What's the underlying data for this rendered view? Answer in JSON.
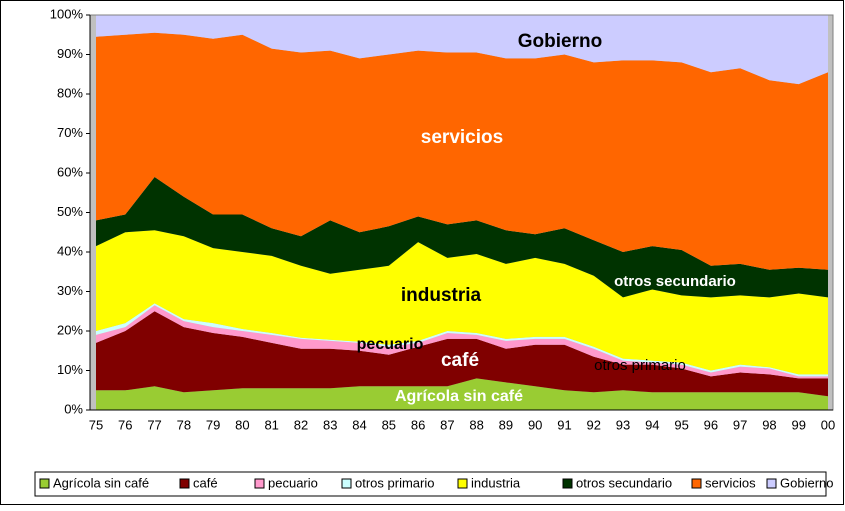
{
  "chart_data": {
    "type": "area",
    "stacked": true,
    "categories": [
      "75",
      "76",
      "77",
      "78",
      "79",
      "80",
      "81",
      "82",
      "83",
      "84",
      "85",
      "86",
      "87",
      "88",
      "89",
      "90",
      "91",
      "92",
      "93",
      "94",
      "95",
      "96",
      "97",
      "98",
      "99",
      "00"
    ],
    "series": [
      {
        "name": "Agrícola sin café",
        "color": "#99cc33",
        "values": [
          5,
          5,
          6,
          4.5,
          5,
          5.5,
          5.5,
          5.5,
          5.5,
          6,
          6,
          6,
          6,
          8,
          7,
          6,
          5,
          4.5,
          5,
          4.5,
          4.5,
          4.5,
          4.5,
          4.5,
          4.5,
          3.5
        ]
      },
      {
        "name": "café",
        "color": "#800000",
        "values": [
          12,
          15,
          19,
          16.5,
          14.5,
          13,
          11.5,
          10,
          10,
          9,
          8,
          10,
          12,
          10,
          8.5,
          10.5,
          11.5,
          9,
          6.5,
          7,
          6,
          4,
          5,
          4.5,
          3.5,
          4.5
        ]
      },
      {
        "name": "pecuario",
        "color": "#ff99cc",
        "values": [
          2,
          1,
          1.5,
          1.5,
          1.5,
          1.5,
          2,
          2.5,
          2,
          2,
          2,
          1,
          1.5,
          1,
          2,
          1.5,
          1.5,
          2,
          1,
          0.5,
          1,
          1,
          1.5,
          1.5,
          0.5,
          0.5
        ]
      },
      {
        "name": "otros primario",
        "color": "#ccffff",
        "values": [
          1,
          1,
          0.5,
          0.5,
          1,
          0.5,
          0.5,
          0.3,
          0.3,
          0.3,
          0.5,
          0.5,
          0.5,
          0.5,
          0.5,
          0.5,
          0.5,
          0.5,
          0.5,
          0.5,
          0.5,
          0.5,
          0.5,
          0.3,
          0.5,
          0.5
        ]
      },
      {
        "name": "industria",
        "color": "#ffff00",
        "values": [
          21.5,
          23,
          18.5,
          21,
          19,
          19.5,
          19.5,
          18.2,
          16.7,
          18.2,
          20,
          25,
          18.5,
          20,
          19,
          20,
          18.5,
          18,
          15.5,
          18,
          17,
          18.5,
          17.5,
          17.7,
          20.5,
          19.5
        ]
      },
      {
        "name": "otros secundario",
        "color": "#003300",
        "values": [
          6.5,
          4.5,
          13.5,
          10,
          8.5,
          9.5,
          7,
          7.5,
          13.5,
          9.5,
          10,
          6.5,
          8.5,
          8.5,
          8.5,
          6,
          9,
          9,
          11.5,
          11,
          11.5,
          8,
          8,
          7,
          6.5,
          7
        ]
      },
      {
        "name": "servicios",
        "color": "#ff6600",
        "values": [
          46.5,
          45.5,
          36.5,
          41,
          44.5,
          45.5,
          45.5,
          46.5,
          43,
          44,
          43.5,
          42,
          43.5,
          42.5,
          43.5,
          44.5,
          44,
          45,
          48.5,
          47,
          47.5,
          49,
          49.5,
          48,
          46.5,
          50
        ]
      },
      {
        "name": "Gobierno",
        "color": "#ccccff",
        "values": [
          5.5,
          5,
          4.5,
          5,
          6,
          5,
          8.5,
          9.5,
          9,
          11,
          10,
          9,
          9.5,
          9.5,
          11,
          11,
          10,
          12,
          11.5,
          11.5,
          12,
          14.5,
          13.5,
          16.5,
          17.5,
          14.5
        ]
      }
    ],
    "annotations": [
      "Gobierno",
      "servicios",
      "industria",
      "otros secundario",
      "pecuario",
      "café",
      "otros primario",
      "Agrícola sin café"
    ],
    "ylim": [
      0,
      100
    ],
    "yticks": [
      {
        "value": 0,
        "label": "0%"
      },
      {
        "value": 10,
        "label": "10%"
      },
      {
        "value": 20,
        "label": "20%"
      },
      {
        "value": 30,
        "label": "30%"
      },
      {
        "value": 40,
        "label": "40%"
      },
      {
        "value": 50,
        "label": "50%"
      },
      {
        "value": 60,
        "label": "60%"
      },
      {
        "value": 70,
        "label": "70%"
      },
      {
        "value": 80,
        "label": "80%"
      },
      {
        "value": 90,
        "label": "90%"
      },
      {
        "value": 100,
        "label": "100%"
      }
    ],
    "legend": "bottom"
  }
}
